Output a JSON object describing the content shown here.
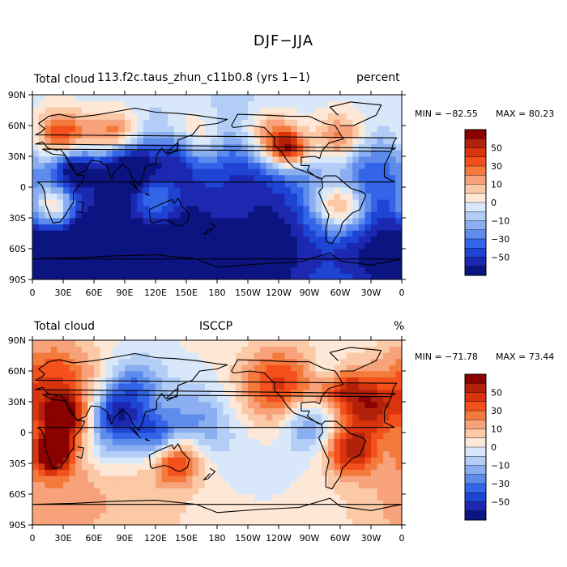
{
  "figure_title": "DJF−JJA",
  "colors": {
    "levels": [
      "#8b0000",
      "#b2220b",
      "#d8340e",
      "#f4501c",
      "#f47a3c",
      "#f7a27a",
      "#fbc9a6",
      "#fde8d8",
      "#d8e8fa",
      "#b3cef6",
      "#8aaef0",
      "#5d8ced",
      "#3465e8",
      "#1e44d4",
      "#1c28b0",
      "#0b1480"
    ]
  },
  "chart_data": [
    {
      "type": "heatmap",
      "title": "Total cloud",
      "subtitle": "113.f2c.taus_zhun_c11b0.8 (yrs 1−1)",
      "units": "percent",
      "min_label": "MIN = −82.55",
      "max_label": "MAX =  80.23",
      "min": -82.55,
      "max": 80.23,
      "xlabel": "",
      "ylabel": "",
      "x_ticks": [
        "0",
        "30E",
        "60E",
        "90E",
        "120E",
        "150E",
        "180",
        "150W",
        "120W",
        "90W",
        "60W",
        "30W",
        "0"
      ],
      "y_ticks": [
        "90N",
        "60N",
        "30N",
        "0",
        "30S",
        "60S",
        "90S"
      ],
      "xlim": [
        0,
        360
      ],
      "ylim": [
        -90,
        90
      ],
      "colorbar_labels": [
        "50",
        "30",
        "10",
        "0",
        "−10",
        "−30",
        "−50"
      ]
    },
    {
      "type": "heatmap",
      "title": "Total cloud",
      "subtitle": "ISCCP",
      "units": "%",
      "min_label": "MIN = −71.78",
      "max_label": "MAX =  73.44",
      "min": -71.78,
      "max": 73.44,
      "xlabel": "",
      "ylabel": "",
      "x_ticks": [
        "0",
        "30E",
        "60E",
        "90E",
        "120E",
        "150E",
        "180",
        "150W",
        "120W",
        "90W",
        "60W",
        "30W",
        "0"
      ],
      "y_ticks": [
        "90N",
        "60N",
        "30N",
        "0",
        "30S",
        "60S",
        "90S"
      ],
      "xlim": [
        0,
        360
      ],
      "ylim": [
        -90,
        90
      ],
      "colorbar_labels": [
        "50",
        "30",
        "10",
        "0",
        "−10",
        "−30",
        "−50"
      ]
    }
  ]
}
